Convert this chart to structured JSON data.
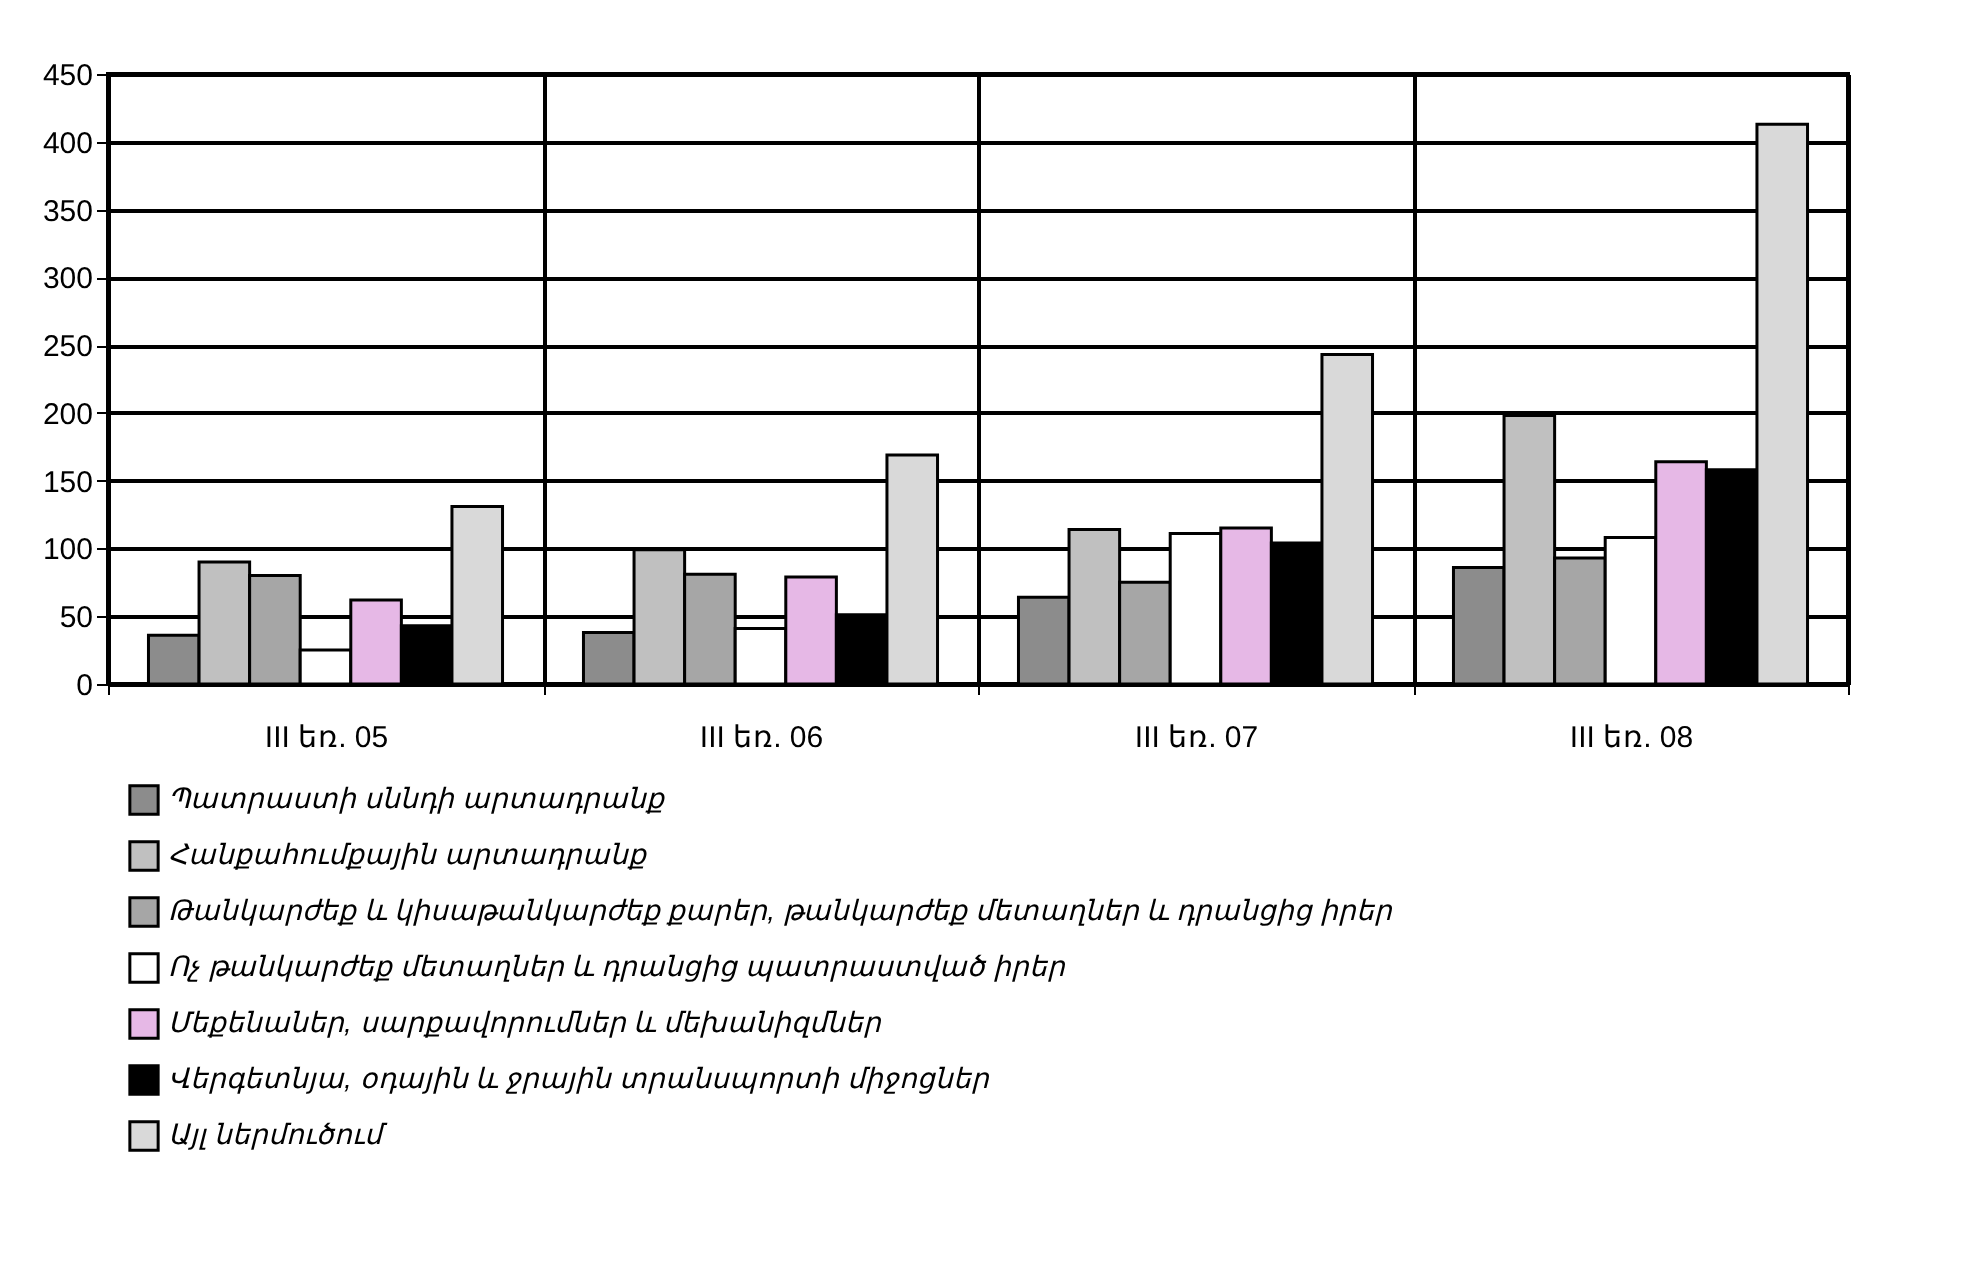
{
  "chart_data": {
    "type": "bar",
    "categories": [
      "III եռ. 05",
      "III եռ. 06",
      "III եռ. 07",
      "III եռ. 08"
    ],
    "series": [
      {
        "name": "Պատրաստի սննդի արտադրանք",
        "color": "#8c8c8c",
        "values": [
          36,
          38,
          64,
          86
        ]
      },
      {
        "name": "Հանքահումքային արտադրանք",
        "color": "#c0c0c0",
        "values": [
          90,
          99,
          114,
          198
        ]
      },
      {
        "name": "Թանկարժեք և կիսաթանկարժեք քարեր, թանկարժեք մետաղներ և դրանցից իրեր",
        "color": "#a6a6a6",
        "values": [
          80,
          81,
          75,
          93
        ]
      },
      {
        "name": "Ոչ թանկարժեք մետաղներ և դրանցից պատրաստված իրեր",
        "color": "#ffffff",
        "values": [
          25,
          41,
          111,
          108
        ]
      },
      {
        "name": "Մեքենաներ, սարքավորումներ և մեխանիզմներ",
        "color": "#e6b8e6",
        "values": [
          62,
          79,
          115,
          164
        ]
      },
      {
        "name": "Վերգետնյա, օդային և ջրային տրանսպորտի միջոցներ",
        "color": "#000000",
        "values": [
          43,
          51,
          104,
          158
        ]
      },
      {
        "name": "Այլ ներմուծում",
        "color": "#d9d9d9",
        "values": [
          131,
          169,
          243,
          413
        ]
      }
    ],
    "ylim": [
      0,
      450
    ],
    "yticks": [
      0,
      50,
      100,
      150,
      200,
      250,
      300,
      350,
      400,
      450
    ],
    "grid": true,
    "legend": "bottom left"
  }
}
